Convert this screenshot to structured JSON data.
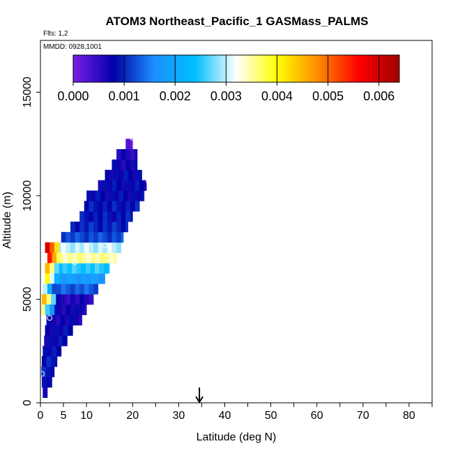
{
  "chart_data": {
    "type": "heatmap",
    "title": "ATOM3 Northeast_Pacific_1 GASMass_PALMS",
    "flights_label": "Flts: 1,2",
    "dates_label": "MMDD: 0928,1001",
    "xlabel": "Latitude (deg N)",
    "ylabel": "Altitude (m)",
    "xlim": [
      0,
      85
    ],
    "ylim": [
      0,
      17500
    ],
    "x_ticks": [
      0,
      5,
      10,
      20,
      30,
      40,
      50,
      60,
      70,
      80
    ],
    "y_ticks": [
      0,
      5000,
      10000,
      15000
    ],
    "colorbar": {
      "range": [
        0,
        0.0064
      ],
      "ticks": [
        "0.000",
        "0.001",
        "0.002",
        "0.003",
        "0.004",
        "0.005",
        "0.006"
      ],
      "tick_values": [
        0,
        0.001,
        0.002,
        0.003,
        0.004,
        0.005,
        0.006
      ],
      "colors": [
        "#7a1ee8",
        "#0000a8",
        "#1e90ff",
        "#00bfff",
        "#ffffff",
        "#ffff00",
        "#ff8c00",
        "#ff0000",
        "#a00000"
      ]
    },
    "arrow_marker_lat": 34.5,
    "cells": [
      {
        "alt": 500,
        "lat_start": 0.5,
        "lat_end": 1.5,
        "value": 0.0008
      },
      {
        "alt": 1000,
        "lat_start": 0.3,
        "lat_end": 2.5,
        "value": 0.0009
      },
      {
        "alt": 1500,
        "lat_start": 0.2,
        "lat_end": 3.0,
        "value": 0.0009
      },
      {
        "alt": 2000,
        "lat_start": 0.3,
        "lat_end": 3.6,
        "value": 0.0009
      },
      {
        "alt": 2500,
        "lat_start": 0.5,
        "lat_end": 4.5,
        "value": 0.0008
      },
      {
        "alt": 3000,
        "lat_start": 0.8,
        "lat_end": 5.8,
        "value": 0.0008
      },
      {
        "alt": 3500,
        "lat_start": 1.0,
        "lat_end": 7.0,
        "value": 0.0008
      },
      {
        "alt": 4000,
        "lat_start": 1.3,
        "lat_end": 9.0,
        "value": 0.0007
      },
      {
        "alt": 4500,
        "lat_start": 1.5,
        "lat_end": 10.0,
        "value": 0.0007
      },
      {
        "alt": 5000,
        "lat_start": 1.5,
        "lat_end": 11.5,
        "value": 0.0006
      },
      {
        "alt": 5500,
        "lat_start": 1.5,
        "lat_end": 12.5,
        "value": 0.0013
      },
      {
        "alt": 6000,
        "lat_start": 1.8,
        "lat_end": 14.0,
        "value": 0.0018
      },
      {
        "alt": 6500,
        "lat_start": 1.8,
        "lat_end": 15.0,
        "value": 0.0025
      },
      {
        "alt": 7000,
        "lat_start": 2.0,
        "lat_end": 16.5,
        "value": 0.0035
      },
      {
        "alt": 7500,
        "lat_start": 2.5,
        "lat_end": 17.5,
        "value": 0.003
      },
      {
        "alt": 8000,
        "lat_start": 4.5,
        "lat_end": 18.0,
        "value": 0.0012
      },
      {
        "alt": 8500,
        "lat_start": 6.5,
        "lat_end": 19.0,
        "value": 0.001
      },
      {
        "alt": 9000,
        "lat_start": 8.5,
        "lat_end": 20.0,
        "value": 0.0009
      },
      {
        "alt": 9500,
        "lat_start": 9.5,
        "lat_end": 21.5,
        "value": 0.0009
      },
      {
        "alt": 10000,
        "lat_start": 10.0,
        "lat_end": 22.5,
        "value": 0.0008
      },
      {
        "alt": 10500,
        "lat_start": 12.5,
        "lat_end": 23.0,
        "value": 0.0008
      },
      {
        "alt": 11000,
        "lat_start": 14.0,
        "lat_end": 22.0,
        "value": 0.0008
      },
      {
        "alt": 11500,
        "lat_start": 15.5,
        "lat_end": 21.0,
        "value": 0.0007
      },
      {
        "alt": 12000,
        "lat_start": 16.5,
        "lat_end": 21.0,
        "value": 0.0006
      },
      {
        "alt": 12500,
        "lat_start": 18.5,
        "lat_end": 20.0,
        "value": 0.0002
      }
    ],
    "hotspots": [
      {
        "alt": 7500,
        "lat": 2.5,
        "value": 0.006
      },
      {
        "alt": 7000,
        "lat": 3.0,
        "value": 0.0055
      },
      {
        "alt": 6500,
        "lat": 2.5,
        "value": 0.0045
      },
      {
        "alt": 6000,
        "lat": 2.5,
        "value": 0.004
      },
      {
        "alt": 5500,
        "lat": 2.0,
        "value": 0.003
      },
      {
        "alt": 5000,
        "lat": 1.8,
        "value": 0.0045
      },
      {
        "alt": 4500,
        "lat": 1.5,
        "value": 0.0035
      }
    ],
    "sample_points": [
      {
        "lat": 0.3,
        "alt": 1400
      },
      {
        "lat": 2.0,
        "alt": 4100
      },
      {
        "lat": 5.0,
        "alt": 7600
      },
      {
        "lat": 7.5,
        "alt": 6800
      },
      {
        "lat": 14.0,
        "alt": 7600
      },
      {
        "lat": 23.5,
        "alt": 10700
      },
      {
        "lat": 20.0,
        "alt": 12800
      }
    ]
  }
}
